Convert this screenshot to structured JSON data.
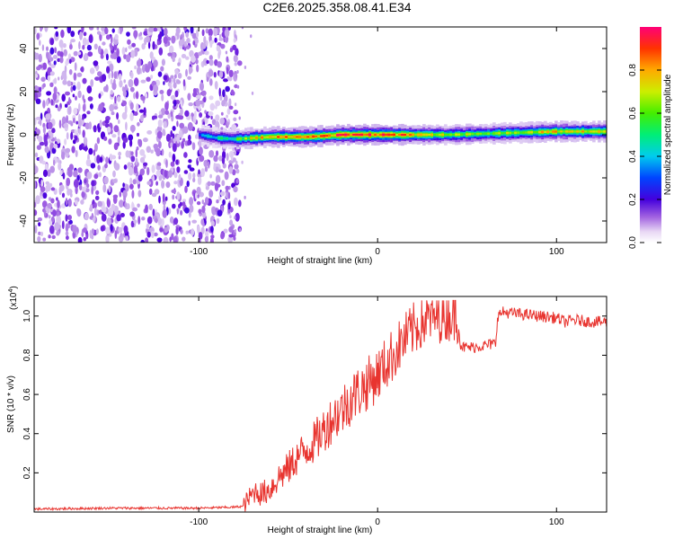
{
  "title": "C2E6.2025.358.08.41.E34",
  "chart_data": [
    {
      "type": "heatmap",
      "title": "C2E6.2025.358.08.41.E34",
      "xlabel": "Height of straight line (km)",
      "ylabel": "Frequency (Hz)",
      "xlim": [
        -192,
        128
      ],
      "ylim": [
        -50,
        50
      ],
      "xticks": [
        -100,
        0,
        100
      ],
      "xtick_labels": [
        "-100",
        "0",
        "100"
      ],
      "yticks": [
        -40,
        -20,
        0,
        20,
        40
      ],
      "ytick_labels": [
        "-40",
        "-20",
        "0",
        "20",
        "40"
      ],
      "noise_region_x": [
        -192,
        -77
      ],
      "signal_band": {
        "x": [
          -100,
          -90,
          -80,
          -70,
          -60,
          -50,
          -40,
          -30,
          -20,
          -10,
          0,
          10,
          20,
          40,
          60,
          80,
          100,
          128
        ],
        "center_hz": [
          0,
          -1.5,
          -2,
          -1.5,
          -1,
          -1,
          -1,
          -0.5,
          0,
          0,
          0,
          0,
          0,
          0,
          0.5,
          1,
          1.5,
          1.5
        ],
        "peak_amplitude": [
          0.35,
          0.5,
          0.55,
          0.75,
          0.8,
          0.85,
          0.85,
          0.9,
          0.95,
          0.95,
          0.95,
          0.9,
          0.8,
          0.7,
          0.65,
          0.7,
          0.8,
          0.75
        ]
      },
      "colorbar": {
        "label": "Normalized spectral amplitude",
        "range": [
          0,
          1
        ],
        "ticks": [
          0.0,
          0.2,
          0.4,
          0.6,
          0.8
        ],
        "tick_labels": [
          "0.0",
          "0.2",
          "0.4",
          "0.6",
          "0.8"
        ]
      }
    },
    {
      "type": "line",
      "xlabel": "Height of straight line (km)",
      "ylabel": "SNR (10 * v/v)",
      "scale_label": "(x10",
      "scale_exponent": "4",
      "xlim": [
        -192,
        128
      ],
      "ylim": [
        0,
        1.1
      ],
      "xticks": [
        -100,
        0,
        100
      ],
      "xtick_labels": [
        "-100",
        "0",
        "100"
      ],
      "yticks": [
        0.2,
        0.4,
        0.6,
        0.8,
        1.0
      ],
      "ytick_labels": [
        "0.2",
        "0.4",
        "0.6",
        "0.8",
        "1.0"
      ],
      "series": [
        {
          "name": "SNR",
          "color": "#e8342f",
          "x": [
            -192,
            -150,
            -100,
            -80,
            -75,
            -72,
            -68,
            -65,
            -60,
            -55,
            -50,
            -45,
            -40,
            -35,
            -30,
            -25,
            -20,
            -15,
            -10,
            -5,
            0,
            5,
            10,
            15,
            20,
            25,
            30,
            35,
            40,
            45,
            46,
            48,
            52,
            60,
            66,
            67,
            70,
            80,
            90,
            100,
            105,
            110,
            120,
            128
          ],
          "y": [
            0.015,
            0.02,
            0.02,
            0.025,
            0.03,
            0.07,
            0.11,
            0.09,
            0.12,
            0.18,
            0.22,
            0.28,
            0.32,
            0.36,
            0.42,
            0.48,
            0.52,
            0.58,
            0.62,
            0.66,
            0.7,
            0.76,
            0.82,
            0.88,
            0.93,
            0.97,
            0.99,
            1.0,
            1.01,
            1.0,
            0.86,
            0.84,
            0.84,
            0.85,
            0.86,
            1.0,
            1.02,
            1.01,
            1.0,
            0.99,
            0.97,
            0.98,
            0.97,
            0.97
          ]
        }
      ]
    }
  ]
}
